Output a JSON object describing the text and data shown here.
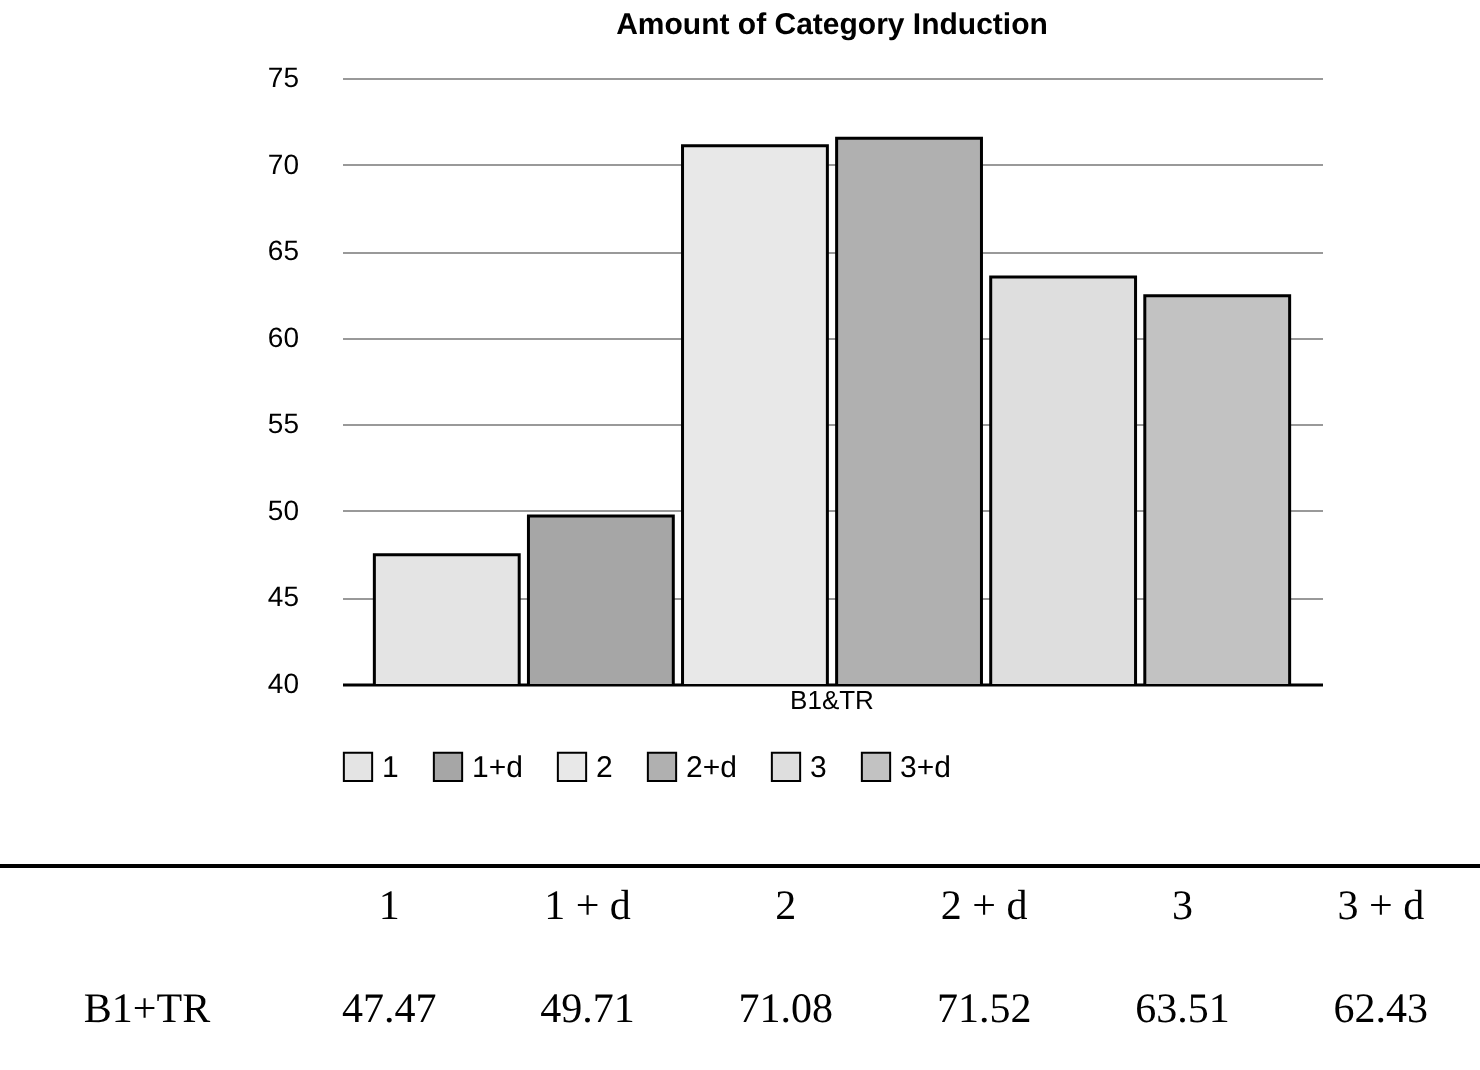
{
  "chart_data": [
    {
      "type": "bar",
      "title": "Amount of Category Induction",
      "categories": [
        "B1&TR"
      ],
      "series": [
        {
          "name": "1",
          "color": "#e4e4e4",
          "values": [
            47.47
          ]
        },
        {
          "name": "1+d",
          "color": "#a6a6a6",
          "values": [
            49.71
          ]
        },
        {
          "name": "2",
          "color": "#e8e8e8",
          "values": [
            71.08
          ]
        },
        {
          "name": "2+d",
          "color": "#b0b0b0",
          "values": [
            71.52
          ]
        },
        {
          "name": "3",
          "color": "#dedede",
          "values": [
            63.51
          ]
        },
        {
          "name": "3+d",
          "color": "#c2c2c2",
          "values": [
            62.43
          ]
        }
      ],
      "ylim": [
        40,
        75
      ],
      "yticks": [
        40,
        45,
        50,
        55,
        60,
        65,
        70,
        75
      ],
      "grid": "y",
      "legend": "bottom"
    },
    {
      "type": "heatmap",
      "categories": [
        "1",
        "1 + d",
        "2",
        "2 + d",
        "3",
        "3 + d"
      ],
      "y_categories": [
        "B1+TR"
      ],
      "cells": [
        [
          47.47,
          49.71,
          71.08,
          71.52,
          63.51,
          62.43
        ]
      ],
      "data_labels": true
    }
  ]
}
